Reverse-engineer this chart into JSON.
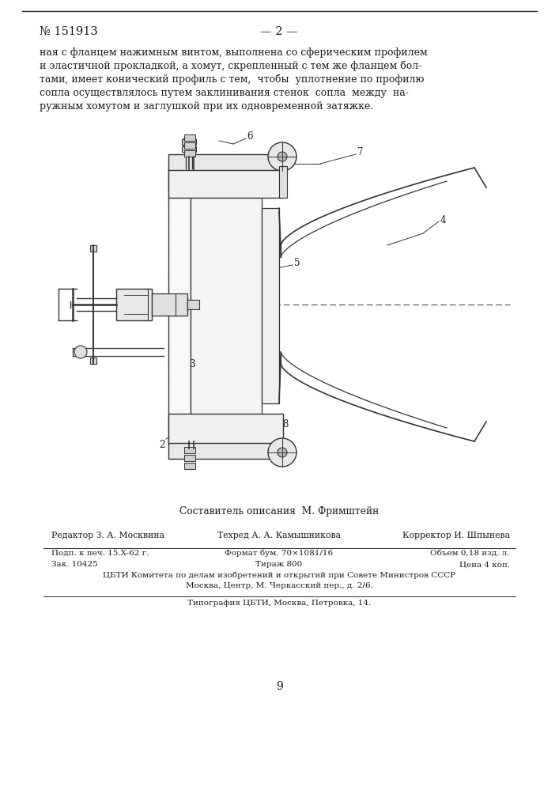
{
  "page_number": "№ 151913",
  "page_header_center": "— 2 —",
  "body_text_lines": [
    "ная с фланцем нажимным винтом, выполнена со сферическим профилем",
    "и эластичной прокладкой, а хомут, скрепленный с тем же фланцем бол-",
    "тами, имеет конический профиль с тем,  чтобы  уплотнение по профилю",
    "сопла осуществлялось путем заклинивания стенок  сопла  между  на-",
    "ружным хомутом и заглушкой при их одновременной затяжке."
  ],
  "author_line": "Составитель описания  М. Фримштейн",
  "col1_row1": "Редактор З. А. Москвина",
  "col2_row1": "Техред А. А. Камышникова",
  "col3_row1": "Корректор И. Шпынева",
  "col1_row2": "Подп. к печ. 15.X-62 г.",
  "col2_row2": "Формат бум. 70×1081/16",
  "col3_row2": "Объем 0,18 изд. л.",
  "col1_row3": "Зак. 10425",
  "col2_row3": "Тираж 800",
  "col3_row3": "Цена 4 коп.",
  "info_line1": "ЦБТИ Комитета по делам изобретений и открытий при Совете Министров СССР",
  "info_line2": "Москва, Центр, М. Черкасский пер., д. 2/6.",
  "print_line": "Типография ЦБТИ, Москва, Петровка, 14.",
  "footer_number": "9",
  "bg_color": "#ffffff",
  "text_color": "#1a1a1a",
  "line_color": "#2a2a2a",
  "draw_color": "#333333"
}
